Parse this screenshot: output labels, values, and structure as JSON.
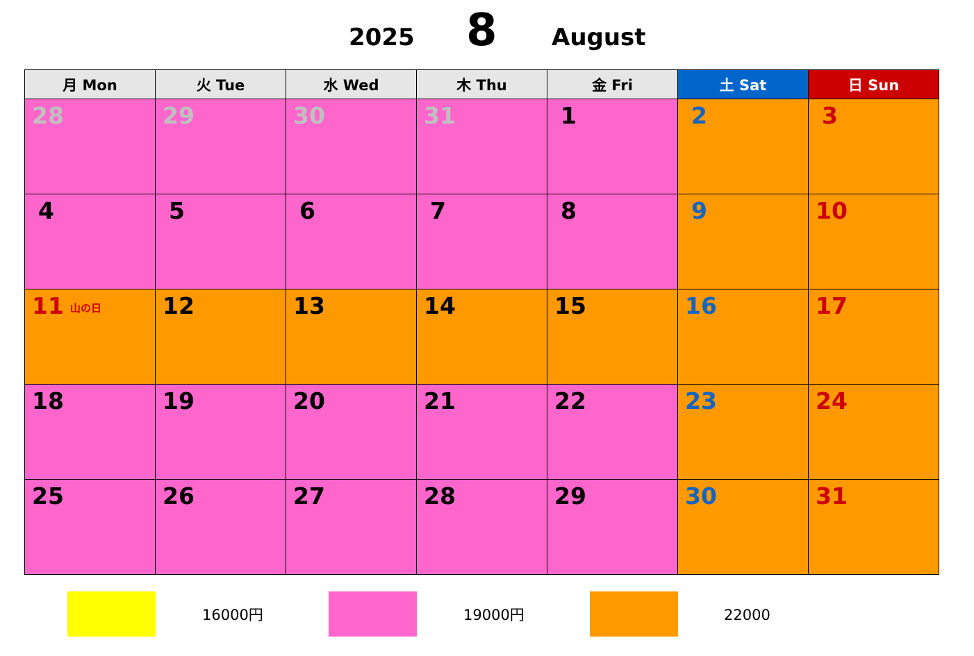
{
  "title": {
    "year": "2025",
    "month_number": "8",
    "month_name": "August"
  },
  "weekdays": [
    {
      "label": "月 Mon"
    },
    {
      "label": "火 Tue"
    },
    {
      "label": "水 Wed"
    },
    {
      "label": "木 Thu"
    },
    {
      "label": "金 Fri"
    },
    {
      "label": "土 Sat"
    },
    {
      "label": "日 Sun"
    }
  ],
  "weeks": [
    [
      {
        "day": "28",
        "rate": "pink",
        "text": "grey"
      },
      {
        "day": "29",
        "rate": "pink",
        "text": "grey"
      },
      {
        "day": "30",
        "rate": "pink",
        "text": "grey"
      },
      {
        "day": "31",
        "rate": "pink",
        "text": "grey"
      },
      {
        "day": "1",
        "rate": "pink",
        "text": "black"
      },
      {
        "day": "2",
        "rate": "orange",
        "text": "blue"
      },
      {
        "day": "3",
        "rate": "orange",
        "text": "red"
      }
    ],
    [
      {
        "day": "4",
        "rate": "pink",
        "text": "black"
      },
      {
        "day": "5",
        "rate": "pink",
        "text": "black"
      },
      {
        "day": "6",
        "rate": "pink",
        "text": "black"
      },
      {
        "day": "7",
        "rate": "pink",
        "text": "black"
      },
      {
        "day": "8",
        "rate": "pink",
        "text": "black"
      },
      {
        "day": "9",
        "rate": "orange",
        "text": "blue"
      },
      {
        "day": "10",
        "rate": "orange",
        "text": "red"
      }
    ],
    [
      {
        "day": "11",
        "rate": "orange",
        "text": "red",
        "holiday": "山の日"
      },
      {
        "day": "12",
        "rate": "orange",
        "text": "black"
      },
      {
        "day": "13",
        "rate": "orange",
        "text": "black"
      },
      {
        "day": "14",
        "rate": "orange",
        "text": "black"
      },
      {
        "day": "15",
        "rate": "orange",
        "text": "black"
      },
      {
        "day": "16",
        "rate": "orange",
        "text": "blue"
      },
      {
        "day": "17",
        "rate": "orange",
        "text": "red"
      }
    ],
    [
      {
        "day": "18",
        "rate": "pink",
        "text": "black"
      },
      {
        "day": "19",
        "rate": "pink",
        "text": "black"
      },
      {
        "day": "20",
        "rate": "pink",
        "text": "black"
      },
      {
        "day": "21",
        "rate": "pink",
        "text": "black"
      },
      {
        "day": "22",
        "rate": "pink",
        "text": "black"
      },
      {
        "day": "23",
        "rate": "orange",
        "text": "blue"
      },
      {
        "day": "24",
        "rate": "orange",
        "text": "red"
      }
    ],
    [
      {
        "day": "25",
        "rate": "pink",
        "text": "black"
      },
      {
        "day": "26",
        "rate": "pink",
        "text": "black"
      },
      {
        "day": "27",
        "rate": "pink",
        "text": "black"
      },
      {
        "day": "28",
        "rate": "pink",
        "text": "black"
      },
      {
        "day": "29",
        "rate": "pink",
        "text": "black"
      },
      {
        "day": "30",
        "rate": "orange",
        "text": "blue"
      },
      {
        "day": "31",
        "rate": "orange",
        "text": "red"
      }
    ]
  ],
  "legend": [
    {
      "color": "#ffff00",
      "label": "16000円"
    },
    {
      "color": "#ff66cc",
      "label": "19000円"
    },
    {
      "color": "#ff9900",
      "label": "22000"
    }
  ],
  "colors": {
    "pink": "#ff66cc",
    "orange": "#ff9900",
    "saturday": "#0066cc",
    "sunday": "#cc0000",
    "header_bg": "#e6e6e6"
  }
}
